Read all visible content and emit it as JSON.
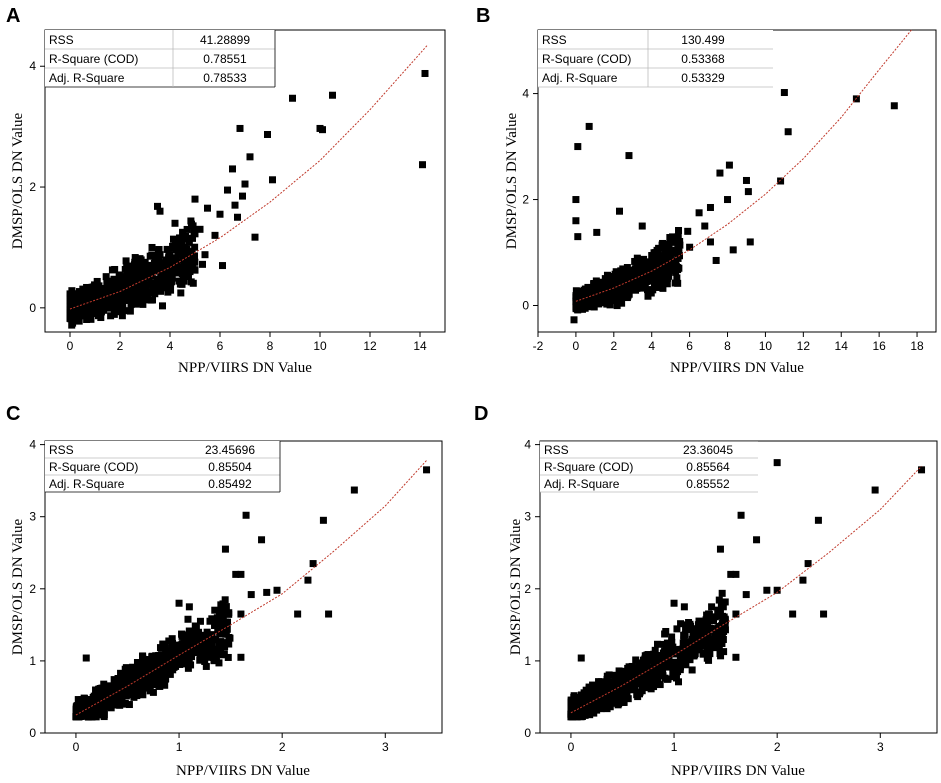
{
  "figure": {
    "panels": [
      "A",
      "B",
      "C",
      "D"
    ]
  },
  "chart_data": [
    {
      "panel": "A",
      "type": "scatter",
      "xlabel": "NPP/VIIRS DN Value",
      "ylabel": "DMSP/OLS DN Value",
      "xlim": [
        -1,
        15
      ],
      "ylim": [
        -0.4,
        4.6
      ],
      "xticks": [
        0,
        2,
        4,
        6,
        8,
        10,
        12,
        14
      ],
      "yticks": [
        0,
        2,
        4
      ],
      "stats": [
        {
          "label": "RSS",
          "value": "41.28899"
        },
        {
          "label": "R-Square (COD)",
          "value": "0.78551"
        },
        {
          "label": "Adj. R-Square",
          "value": "0.78533"
        }
      ],
      "fit_curve": {
        "x": [
          0,
          2,
          4,
          6,
          8,
          10,
          12,
          14.3
        ],
        "y": [
          -0.02,
          0.27,
          0.67,
          1.16,
          1.75,
          2.44,
          3.28,
          4.35
        ]
      },
      "points": [
        [
          14.2,
          3.88
        ],
        [
          14.1,
          2.37
        ],
        [
          10.5,
          3.52
        ],
        [
          8.9,
          3.47
        ],
        [
          10.1,
          2.95
        ],
        [
          10.0,
          2.97
        ],
        [
          6.8,
          2.97
        ],
        [
          7.9,
          2.87
        ],
        [
          8.1,
          2.12
        ],
        [
          7.4,
          1.17
        ],
        [
          7.2,
          2.5
        ],
        [
          6.5,
          2.3
        ],
        [
          7.0,
          2.05
        ],
        [
          6.9,
          1.85
        ],
        [
          6.6,
          1.7
        ],
        [
          6.3,
          1.95
        ],
        [
          6.0,
          1.55
        ],
        [
          5.8,
          1.2
        ],
        [
          5.5,
          1.65
        ],
        [
          5.2,
          1.3
        ],
        [
          5.0,
          1.8
        ],
        [
          4.9,
          1.15
        ],
        [
          4.6,
          1.0
        ],
        [
          3.5,
          1.68
        ],
        [
          3.6,
          1.6
        ],
        [
          4.2,
          1.4
        ],
        [
          5.4,
          0.88
        ],
        [
          5.3,
          0.72
        ],
        [
          4.8,
          0.6
        ],
        [
          6.7,
          1.5
        ],
        [
          6.1,
          0.7
        ]
      ],
      "cloud": {
        "xmin": 0,
        "xmax": 5.0,
        "noise_lo": 0.2,
        "noise_hi": 0.55,
        "n": 700,
        "ymin": -0.33,
        "seed": 11
      }
    },
    {
      "panel": "B",
      "type": "scatter",
      "xlabel": "NPP/VIIRS DN Value",
      "ylabel": "DMSP/OLS DN Value",
      "xlim": [
        -2,
        19
      ],
      "ylim": [
        -0.5,
        5.2
      ],
      "xticks": [
        -2,
        0,
        2,
        4,
        6,
        8,
        10,
        12,
        14,
        16,
        18
      ],
      "yticks": [
        0,
        2,
        4
      ],
      "stats": [
        {
          "label": "RSS",
          "value": "130.499"
        },
        {
          "label": "R-Square (COD)",
          "value": "0.53368"
        },
        {
          "label": "Adj. R-Square",
          "value": "0.53329"
        }
      ],
      "fit_curve": {
        "x": [
          0,
          2,
          4,
          6,
          8,
          10,
          12,
          14,
          16,
          17.7
        ],
        "y": [
          0.08,
          0.33,
          0.65,
          1.05,
          1.53,
          2.1,
          2.77,
          3.55,
          4.45,
          5.2
        ]
      },
      "points": [
        [
          16.8,
          3.77
        ],
        [
          14.8,
          3.9
        ],
        [
          11.0,
          4.02
        ],
        [
          11.2,
          3.28
        ],
        [
          0.7,
          3.38
        ],
        [
          0.1,
          3.0
        ],
        [
          2.8,
          2.83
        ],
        [
          9.0,
          2.36
        ],
        [
          10.8,
          2.35
        ],
        [
          8.1,
          2.65
        ],
        [
          7.6,
          2.5
        ],
        [
          9.1,
          2.15
        ],
        [
          8.0,
          2.0
        ],
        [
          7.1,
          1.85
        ],
        [
          6.5,
          1.75
        ],
        [
          6.8,
          1.5
        ],
        [
          5.9,
          1.4
        ],
        [
          5.4,
          1.3
        ],
        [
          6.0,
          1.1
        ],
        [
          7.1,
          1.2
        ],
        [
          8.3,
          1.05
        ],
        [
          9.2,
          1.2
        ],
        [
          2.3,
          1.78
        ],
        [
          1.1,
          1.38
        ],
        [
          3.5,
          1.5
        ],
        [
          4.7,
          1.0
        ],
        [
          -0.1,
          -0.27
        ],
        [
          0.0,
          2.0
        ],
        [
          0.0,
          1.6
        ],
        [
          0.1,
          1.3
        ],
        [
          7.4,
          0.85
        ]
      ],
      "cloud": {
        "xmin": 0,
        "xmax": 5.5,
        "noise_lo": 0.15,
        "noise_hi": 0.45,
        "n": 750,
        "ymin": -0.1,
        "seed": 23
      }
    },
    {
      "panel": "C",
      "type": "scatter",
      "xlabel": "NPP/VIIRS DN Value",
      "ylabel": "DMSP/OLS DN Value",
      "xlim": [
        -0.3,
        3.55
      ],
      "ylim": [
        0,
        4.05
      ],
      "xticks": [
        0,
        1,
        2,
        3
      ],
      "yticks": [
        0,
        1,
        2,
        3,
        4
      ],
      "stats": [
        {
          "label": "RSS",
          "value": "23.45696"
        },
        {
          "label": "R-Square (COD)",
          "value": "0.85504"
        },
        {
          "label": "Adj. R-Square",
          "value": "0.85492"
        }
      ],
      "fit_curve": {
        "x": [
          0,
          0.5,
          1,
          1.5,
          2,
          2.5,
          3,
          3.4
        ],
        "y": [
          0.25,
          0.65,
          1.08,
          1.5,
          1.93,
          2.52,
          3.15,
          3.78
        ]
      },
      "points": [
        [
          3.4,
          3.65
        ],
        [
          2.7,
          3.37
        ],
        [
          2.4,
          2.95
        ],
        [
          1.65,
          3.02
        ],
        [
          1.8,
          2.68
        ],
        [
          2.3,
          2.35
        ],
        [
          1.45,
          2.55
        ],
        [
          1.55,
          2.2
        ],
        [
          1.6,
          2.2
        ],
        [
          1.95,
          1.98
        ],
        [
          1.85,
          1.95
        ],
        [
          2.25,
          2.12
        ],
        [
          2.15,
          1.65
        ],
        [
          2.45,
          1.65
        ],
        [
          1.7,
          1.92
        ],
        [
          1.6,
          1.65
        ],
        [
          1.3,
          1.55
        ],
        [
          1.1,
          1.75
        ],
        [
          1.0,
          1.8
        ],
        [
          0.1,
          1.04
        ],
        [
          1.4,
          1.2
        ],
        [
          1.6,
          1.05
        ],
        [
          1.3,
          1.05
        ]
      ],
      "cloud": {
        "xmin": 0,
        "xmax": 1.5,
        "noise_lo": 0.15,
        "noise_hi": 0.4,
        "n": 750,
        "ymin": 0.22,
        "seed": 37
      }
    },
    {
      "panel": "D",
      "type": "scatter",
      "xlabel": "NPP/VIIRS DN Value",
      "ylabel": "DMSP/OLS DN Value",
      "xlim": [
        -0.3,
        3.55
      ],
      "ylim": [
        0,
        4.05
      ],
      "xticks": [
        0,
        1,
        2,
        3
      ],
      "yticks": [
        0,
        1,
        2,
        3,
        4
      ],
      "stats": [
        {
          "label": "RSS",
          "value": "23.36045"
        },
        {
          "label": "R-Square (COD)",
          "value": "0.85564"
        },
        {
          "label": "Adj. R-Square",
          "value": "0.85552"
        }
      ],
      "fit_curve": {
        "x": [
          0,
          0.5,
          1,
          1.5,
          2,
          2.5,
          3,
          3.4
        ],
        "y": [
          0.28,
          0.66,
          1.08,
          1.52,
          1.95,
          2.5,
          3.1,
          3.7
        ]
      },
      "points": [
        [
          3.4,
          3.65
        ],
        [
          2.95,
          3.37
        ],
        [
          2.0,
          3.75
        ],
        [
          2.4,
          2.95
        ],
        [
          1.65,
          3.02
        ],
        [
          1.8,
          2.68
        ],
        [
          2.3,
          2.35
        ],
        [
          1.45,
          2.55
        ],
        [
          1.55,
          2.2
        ],
        [
          1.6,
          2.2
        ],
        [
          1.9,
          1.98
        ],
        [
          2.0,
          1.98
        ],
        [
          2.25,
          2.12
        ],
        [
          2.15,
          1.65
        ],
        [
          2.45,
          1.65
        ],
        [
          1.7,
          1.92
        ],
        [
          1.6,
          1.65
        ],
        [
          1.3,
          1.55
        ],
        [
          1.1,
          1.75
        ],
        [
          1.0,
          1.8
        ],
        [
          0.1,
          1.04
        ],
        [
          1.4,
          1.2
        ],
        [
          1.6,
          1.05
        ]
      ],
      "cloud": {
        "xmin": 0,
        "xmax": 1.5,
        "noise_lo": 0.15,
        "noise_hi": 0.4,
        "n": 750,
        "ymin": 0.22,
        "seed": 41
      }
    }
  ]
}
